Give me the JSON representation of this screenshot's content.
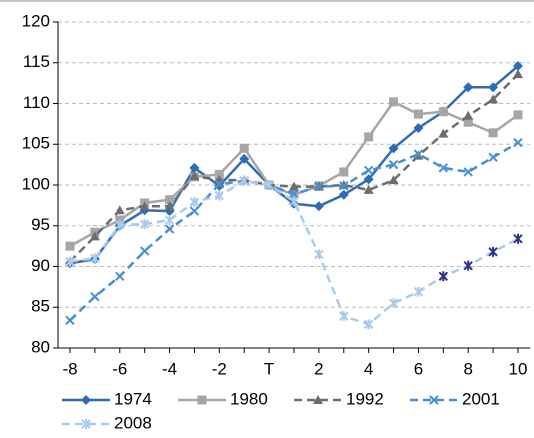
{
  "chart_data": {
    "type": "line",
    "categories": [
      "-8",
      null,
      "-6",
      null,
      "-4",
      null,
      "-2",
      null,
      "T",
      null,
      "2",
      null,
      "4",
      null,
      "6",
      null,
      "8",
      null,
      "10"
    ],
    "ylim": [
      80,
      120
    ],
    "yticks": [
      80,
      85,
      90,
      95,
      100,
      105,
      110,
      115,
      120
    ],
    "grid": true,
    "series": [
      {
        "name": "1974",
        "color": "#2e6db5",
        "marker": "diamond",
        "dash": false,
        "values": [
          90.4,
          90.9,
          95.0,
          96.9,
          96.8,
          102.1,
          99.9,
          103.2,
          100,
          97.7,
          97.4,
          98.8,
          100.7,
          104.5,
          107.0,
          109.0,
          112.0,
          112.0,
          114.6
        ]
      },
      {
        "name": "1980",
        "color": "#a6a6a6",
        "marker": "square",
        "dash": false,
        "values": [
          92.5,
          94.2,
          95.7,
          97.8,
          98.2,
          101.0,
          101.3,
          104.5,
          100,
          98.8,
          99.9,
          101.6,
          105.9,
          110.2,
          108.7,
          109.0,
          107.7,
          106.4,
          108.6
        ]
      },
      {
        "name": "1992",
        "color": "#6d6d6d",
        "marker": "triangle",
        "dash": true,
        "values": [
          90.6,
          93.7,
          96.9,
          97.4,
          97.4,
          101.1,
          100.6,
          100.6,
          100,
          99.8,
          99.8,
          100.0,
          99.4,
          100.6,
          103.6,
          106.3,
          108.5,
          110.5,
          113.6
        ]
      },
      {
        "name": "2001",
        "color": "#4a8fd0",
        "marker": "cross",
        "dash": true,
        "values": [
          83.4,
          86.3,
          88.8,
          91.9,
          94.6,
          96.8,
          100.1,
          100.5,
          100,
          98.9,
          99.8,
          99.9,
          101.8,
          102.5,
          103.8,
          102.1,
          101.6,
          103.4,
          105.2
        ]
      },
      {
        "name": "2008",
        "color": "#a9cbec",
        "marker": "star",
        "dash": true,
        "values": [
          90.6,
          91.0,
          95.1,
          95.2,
          95.7,
          97.9,
          98.7,
          100.5,
          100,
          98.0,
          91.5,
          83.9,
          82.9,
          85.5,
          86.9,
          88.8,
          90.1,
          91.8,
          93.4
        ],
        "point_colors": [
          "#a9cbec",
          "#a9cbec",
          "#a9cbec",
          "#a9cbec",
          "#a9cbec",
          "#a9cbec",
          "#a9cbec",
          "#a9cbec",
          "#a9cbec",
          "#a9cbec",
          "#a9cbec",
          "#a9cbec",
          "#a9cbec",
          "#a9cbec",
          "#a9cbec",
          "#2e3192",
          "#2e3192",
          "#2e3192",
          "#2e3192"
        ]
      }
    ]
  }
}
